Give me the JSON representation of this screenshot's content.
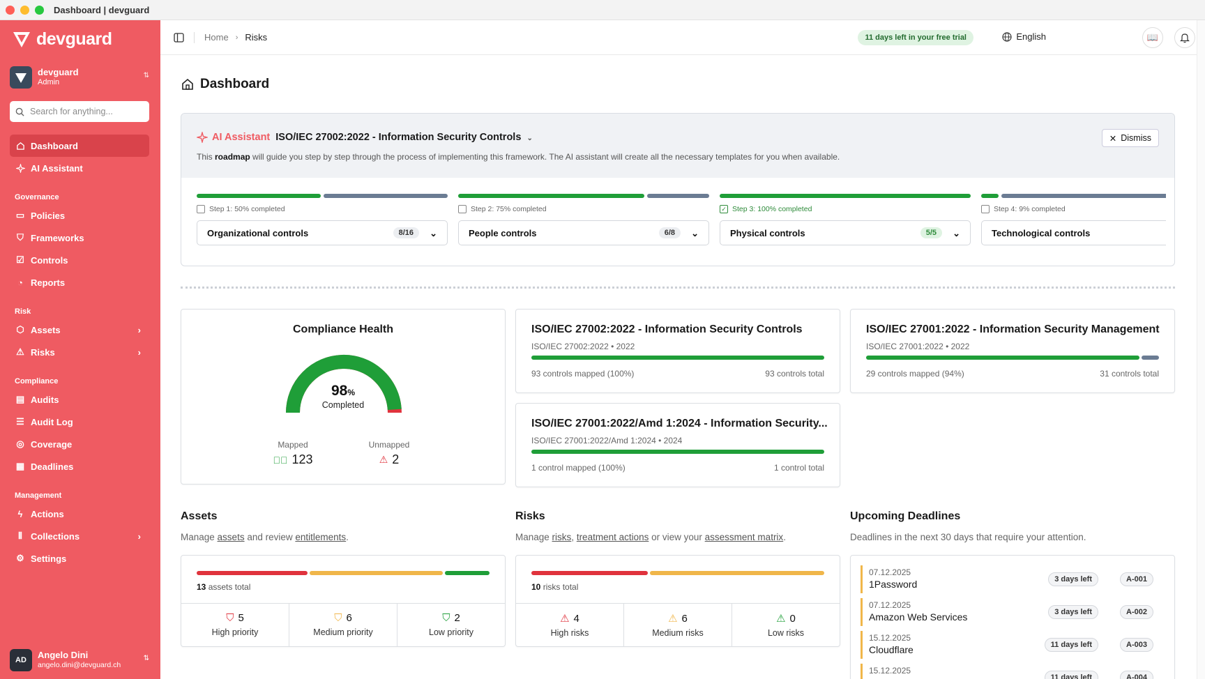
{
  "window": {
    "title": "Dashboard | devguard"
  },
  "colors": {
    "sidebar": "#ef5b62",
    "success": "#1f9e38",
    "danger": "#e0333d",
    "warning": "#f0b64a",
    "muted": "#6b7c93"
  },
  "sidebar": {
    "brand": "devguard",
    "org": {
      "name": "devguard",
      "role": "Admin"
    },
    "search_placeholder": "Search for anything...",
    "items": [
      {
        "label": "Dashboard",
        "icon": "home-icon"
      },
      {
        "label": "AI Assistant",
        "icon": "sparkles-icon"
      }
    ],
    "sections": [
      {
        "title": "Governance",
        "items": [
          {
            "label": "Policies"
          },
          {
            "label": "Frameworks"
          },
          {
            "label": "Controls"
          },
          {
            "label": "Reports"
          }
        ]
      },
      {
        "title": "Risk",
        "items": [
          {
            "label": "Assets"
          },
          {
            "label": "Risks"
          }
        ]
      },
      {
        "title": "Compliance",
        "items": [
          {
            "label": "Audits"
          },
          {
            "label": "Audit Log"
          },
          {
            "label": "Coverage"
          },
          {
            "label": "Deadlines"
          }
        ]
      },
      {
        "title": "Management",
        "items": [
          {
            "label": "Actions"
          },
          {
            "label": "Collections"
          },
          {
            "label": "Settings"
          }
        ]
      }
    ],
    "user": {
      "initials": "AD",
      "name": "Angelo Dini",
      "email": "angelo.dini@devguard.ch"
    }
  },
  "topbar": {
    "breadcrumb": [
      "Home",
      "Risks"
    ],
    "trial": "11 days left in your free trial",
    "language": "English"
  },
  "page": {
    "title": "Dashboard"
  },
  "ai_assistant": {
    "label": "AI Assistant",
    "framework": "ISO/IEC 27002:2022 - Information Security Controls",
    "desc_pre": "This ",
    "desc_bold": "roadmap",
    "desc_post": " will guide you step by step through the process of implementing this framework. The AI assistant will create all the necessary templates for you when available.",
    "dismiss": "Dismiss",
    "steps": [
      {
        "caption": "Step 1: 50% completed",
        "progress": 0.5,
        "name": "Organizational controls",
        "badge": "8/16"
      },
      {
        "caption": "Step 2: 75% completed",
        "progress": 0.75,
        "name": "People controls",
        "badge": "6/8"
      },
      {
        "caption": "Step 3: 100% completed",
        "progress": 1.0,
        "name": "Physical controls",
        "badge": "5/5"
      },
      {
        "caption": "Step 4: 9% completed",
        "progress": 0.09,
        "name": "Technological controls",
        "badge": ""
      }
    ]
  },
  "health": {
    "title": "Compliance Health",
    "percent": "98",
    "percent_sign": "%",
    "completed": "Completed",
    "mapped_label": "Mapped",
    "mapped": "123",
    "unmapped_label": "Unmapped",
    "unmapped": "2",
    "fill": 0.98
  },
  "frameworks": [
    {
      "title": "ISO/IEC 27002:2022 - Information Security Controls",
      "sub": "ISO/IEC 27002:2022 • 2022",
      "mapped": "93 controls mapped (100%)",
      "total": "93 controls total",
      "progress": 1.0
    },
    {
      "title": "ISO/IEC 27001:2022 - Information Security Management",
      "sub": "ISO/IEC 27001:2022 • 2022",
      "mapped": "29 controls mapped (94%)",
      "total": "31 controls total",
      "progress": 0.94
    },
    {
      "title": "ISO/IEC 27001:2022/Amd 1:2024 - Information Security...",
      "sub": "ISO/IEC 27001:2022/Amd 1:2024 • 2024",
      "mapped": "1 control mapped (100%)",
      "total": "1 control total",
      "progress": 1.0
    }
  ],
  "assets": {
    "title": "Assets",
    "d1": "Manage ",
    "l1": "assets",
    "d2": " and review ",
    "l2": "entitlements",
    "d3": ".",
    "total_num": "13",
    "total_label": " assets total",
    "cols": [
      {
        "value": "5",
        "label": "High priority"
      },
      {
        "value": "6",
        "label": "Medium priority"
      },
      {
        "value": "2",
        "label": "Low priority"
      }
    ]
  },
  "risks": {
    "title": "Risks",
    "d1": "Manage ",
    "l1": "risks",
    "d2": ", ",
    "l2": "treatment actions",
    "d3": " or view your ",
    "l3": "assessment matrix",
    "d4": ".",
    "total_num": "10",
    "total_label": " risks total",
    "cols": [
      {
        "value": "4",
        "label": "High risks"
      },
      {
        "value": "6",
        "label": "Medium risks"
      },
      {
        "value": "0",
        "label": "Low risks"
      }
    ]
  },
  "deadlines": {
    "title": "Upcoming Deadlines",
    "desc": "Deadlines in the next 30 days that require your attention.",
    "items": [
      {
        "date": "07.12.2025",
        "name": "1Password",
        "left": "3 days left",
        "id": "A-001"
      },
      {
        "date": "07.12.2025",
        "name": "Amazon Web Services",
        "left": "3 days left",
        "id": "A-002"
      },
      {
        "date": "15.12.2025",
        "name": "Cloudflare",
        "left": "11 days left",
        "id": "A-003"
      },
      {
        "date": "15.12.2025",
        "name": "",
        "left": "11 days left",
        "id": "A-004"
      }
    ]
  }
}
